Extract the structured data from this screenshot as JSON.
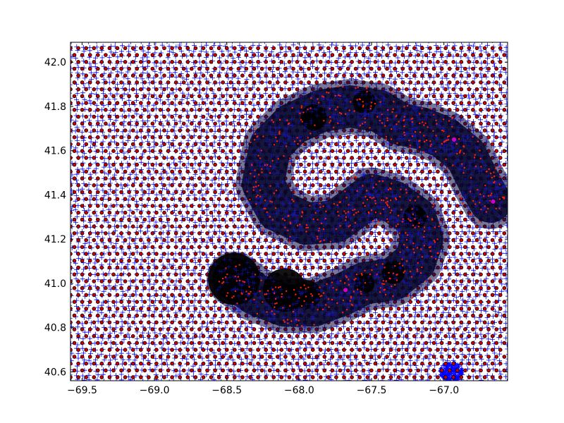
{
  "chart_data": {
    "type": "scatter",
    "title": "",
    "xlabel": "",
    "ylabel": "",
    "xlim": [
      -69.58,
      -66.56
    ],
    "ylim": [
      40.56,
      42.09
    ],
    "grid": false,
    "legend": "none",
    "x_ticks": [
      -69.5,
      -69.0,
      -68.5,
      -68.0,
      -67.5,
      -67.0
    ],
    "x_tick_labels": [
      "−69.5",
      "−69.0",
      "−68.5",
      "−68.0",
      "−67.5",
      "−67.0"
    ],
    "y_ticks": [
      40.6,
      40.8,
      41.0,
      41.2,
      41.4,
      41.6,
      41.8,
      42.0
    ],
    "y_tick_labels": [
      "40.6",
      "40.8",
      "41.0",
      "41.2",
      "41.4",
      "41.6",
      "41.8",
      "42.0"
    ],
    "colors": {
      "cross": "#0000ff",
      "dot_fill": "#cc0000",
      "dot_edge": "#000000",
      "cloud": "#000000",
      "cloud_point": "#ff2200",
      "highlight": "#cc00cc"
    },
    "layers": [
      {
        "marker": "plus",
        "desc": "unstructured mesh nodes",
        "spacing_deg": [
          0.045,
          0.024
        ]
      },
      {
        "marker": "dot",
        "desc": "regular grid points",
        "spacing_deg": [
          0.054,
          0.031
        ]
      },
      {
        "marker": "cloud",
        "desc": "particle cloud"
      }
    ],
    "cloud_path": [
      [
        -68.45,
        41.02
      ],
      [
        -68.3,
        40.95
      ],
      [
        -68.1,
        40.9
      ],
      [
        -67.9,
        40.9
      ],
      [
        -67.7,
        40.95
      ],
      [
        -67.55,
        41.0
      ],
      [
        -67.35,
        41.02
      ],
      [
        -67.2,
        41.1
      ],
      [
        -67.15,
        41.2
      ],
      [
        -67.2,
        41.3
      ],
      [
        -67.35,
        41.37
      ],
      [
        -67.5,
        41.4
      ],
      [
        -67.6,
        41.35
      ],
      [
        -67.75,
        41.28
      ],
      [
        -67.95,
        41.27
      ],
      [
        -68.15,
        41.33
      ],
      [
        -68.25,
        41.45
      ],
      [
        -68.2,
        41.62
      ],
      [
        -68.05,
        41.72
      ],
      [
        -67.85,
        41.78
      ],
      [
        -67.65,
        41.8
      ],
      [
        -67.45,
        41.78
      ],
      [
        -67.3,
        41.72
      ],
      [
        -67.15,
        41.7
      ],
      [
        -67.0,
        41.66
      ],
      [
        -66.85,
        41.58
      ],
      [
        -66.75,
        41.45
      ],
      [
        -66.68,
        41.37
      ]
    ],
    "cloud_blobs": [
      [
        -68.45,
        41.02,
        0.18
      ],
      [
        -68.1,
        40.97,
        0.15
      ],
      [
        -67.95,
        40.95,
        0.1
      ],
      [
        -67.35,
        41.05,
        0.08
      ],
      [
        -67.55,
        41.0,
        0.07
      ],
      [
        -67.9,
        41.75,
        0.09
      ],
      [
        -67.55,
        41.82,
        0.08
      ],
      [
        -67.2,
        41.3,
        0.08
      ]
    ],
    "highlight_points": [
      [
        -67.68,
        40.97
      ],
      [
        -66.93,
        41.65
      ],
      [
        -66.66,
        41.37
      ]
    ],
    "dense_spots": [
      [
        -66.95,
        40.6,
        0.08
      ]
    ]
  }
}
